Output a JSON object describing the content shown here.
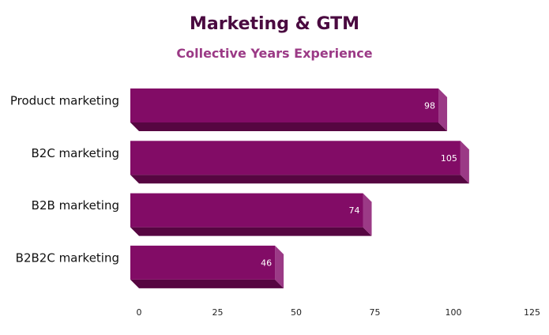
{
  "chart_data": {
    "type": "bar",
    "orientation": "horizontal",
    "title": "Marketing & GTM",
    "subtitle": "Collective Years Experience",
    "categories": [
      "Product marketing",
      "B2C marketing",
      "B2B marketing",
      "B2B2C marketing"
    ],
    "values": [
      98,
      105,
      74,
      46
    ],
    "data_labels": [
      "98",
      "105",
      "74",
      "46"
    ],
    "xlim": [
      0,
      125
    ],
    "x_ticks": [
      "0",
      "25",
      "50",
      "75",
      "100",
      "125"
    ],
    "grid": false,
    "legend": "none",
    "style": "3d"
  },
  "colors": {
    "bar_face": "#820c66",
    "bar_side": "#9b3a86",
    "bar_bottom": "#560641",
    "title": "#4a0a40",
    "subtitle": "#9b3a86"
  }
}
